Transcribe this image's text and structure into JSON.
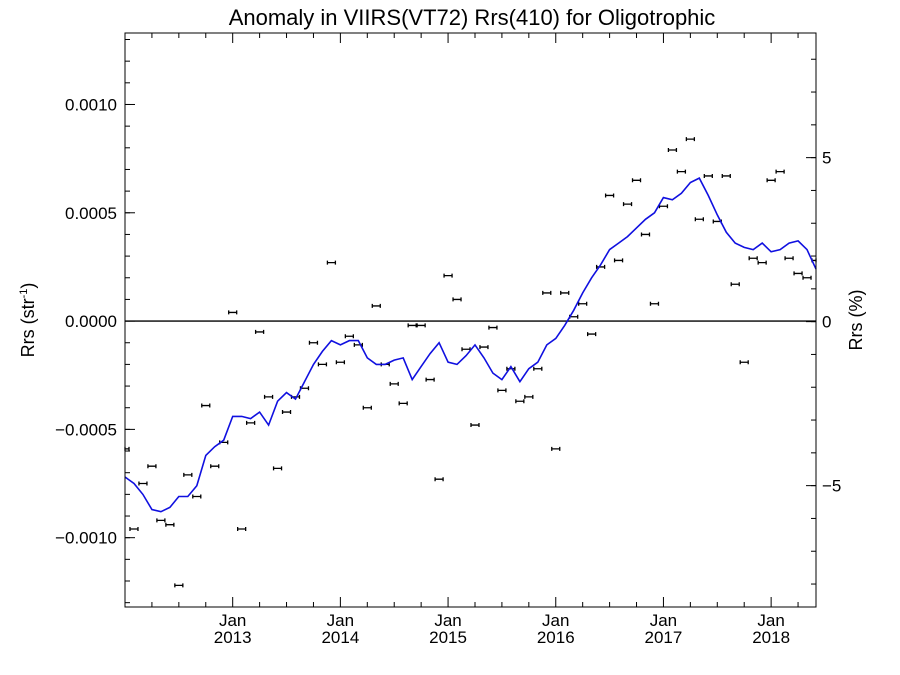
{
  "chart_data": {
    "type": "line",
    "title": "Anomaly in VIIRS(VT72) Rrs(410) for Oligotrophic",
    "ylabel_left": "Rrs (str",
    "ylabel_left_sup": "-1",
    "ylabel_left_close": ")",
    "ylabel_right": "Rrs (%)",
    "xlim": [
      "2012-01",
      "2018-06"
    ],
    "ylim": [
      -0.00132,
      0.00133
    ],
    "ylim_right": [
      -8.7,
      8.8
    ],
    "grid": false,
    "legend": "none",
    "colors": {
      "line": "#1010e0",
      "points": "#000000",
      "zero_line": "#000000"
    },
    "y_ticks_left": [
      {
        "value": 0.001,
        "label": "0.0010"
      },
      {
        "value": 0.0005,
        "label": "0.0005"
      },
      {
        "value": 0,
        "label": "0.0000"
      },
      {
        "value": -0.0005,
        "label": "−0.0005"
      },
      {
        "value": -0.001,
        "label": "−0.0010"
      }
    ],
    "y_ticks_right": [
      {
        "value": 5,
        "label": "5"
      },
      {
        "value": 0,
        "label": "0"
      },
      {
        "value": -5,
        "label": "−5"
      }
    ],
    "x_ticks": [
      {
        "date": "2013-01",
        "month": "Jan",
        "year": "2013"
      },
      {
        "date": "2014-01",
        "month": "Jan",
        "year": "2014"
      },
      {
        "date": "2015-01",
        "month": "Jan",
        "year": "2015"
      },
      {
        "date": "2016-01",
        "month": "Jan",
        "year": "2016"
      },
      {
        "date": "2017-01",
        "month": "Jan",
        "year": "2017"
      },
      {
        "date": "2018-01",
        "month": "Jan",
        "year": "2018"
      }
    ],
    "series": [
      {
        "kind": "points",
        "x": [
          "2012-01",
          "2012-02",
          "2012-03",
          "2012-04",
          "2012-05",
          "2012-06",
          "2012-07",
          "2012-08",
          "2012-09",
          "2012-10",
          "2012-11",
          "2012-12",
          "2013-01",
          "2013-02",
          "2013-03",
          "2013-04",
          "2013-05",
          "2013-06",
          "2013-07",
          "2013-08",
          "2013-09",
          "2013-10",
          "2013-11",
          "2013-12",
          "2014-01",
          "2014-02",
          "2014-03",
          "2014-04",
          "2014-05",
          "2014-06",
          "2014-07",
          "2014-08",
          "2014-09",
          "2014-10",
          "2014-11",
          "2014-12",
          "2015-01",
          "2015-02",
          "2015-03",
          "2015-04",
          "2015-05",
          "2015-06",
          "2015-07",
          "2015-08",
          "2015-09",
          "2015-10",
          "2015-11",
          "2015-12",
          "2016-01",
          "2016-02",
          "2016-03",
          "2016-04",
          "2016-05",
          "2016-06",
          "2016-07",
          "2016-08",
          "2016-09",
          "2016-10",
          "2016-11",
          "2016-12",
          "2017-01",
          "2017-02",
          "2017-03",
          "2017-04",
          "2017-05",
          "2017-06",
          "2017-07",
          "2017-08",
          "2017-09",
          "2017-10",
          "2017-11",
          "2017-12",
          "2018-01",
          "2018-02",
          "2018-03",
          "2018-04",
          "2018-05",
          "2018-06"
        ],
        "y": [
          -0.00059,
          -0.00096,
          -0.00075,
          -0.00067,
          -0.00092,
          -0.00094,
          -0.00122,
          -0.00071,
          -0.00081,
          -0.00039,
          -0.00067,
          -0.00056,
          4e-05,
          -0.00096,
          -0.00047,
          -5e-05,
          -0.00035,
          -0.00068,
          -0.00042,
          -0.00035,
          -0.00031,
          -0.0001,
          -0.0002,
          0.00027,
          -0.00019,
          -7e-05,
          -0.00011,
          -0.0004,
          7e-05,
          -0.0002,
          -0.00029,
          -0.00038,
          -2e-05,
          -2e-05,
          -0.00027,
          -0.00073,
          0.00021,
          0.0001,
          -0.00013,
          -0.00048,
          -0.00012,
          -3e-05,
          -0.00032,
          -0.00022,
          -0.00037,
          -0.00035,
          -0.00022,
          0.00013,
          -0.00059,
          0.00013,
          2e-05,
          8e-05,
          -6e-05,
          0.00025,
          0.00058,
          0.00028,
          0.00054,
          0.00065,
          0.0004,
          8e-05,
          0.00053,
          0.00079,
          0.00069,
          0.00084,
          0.00047,
          0.00067,
          0.00046,
          0.00067,
          0.00017,
          -0.00019,
          0.00029,
          0.00027,
          0.00065,
          0.00069,
          0.00029,
          0.00022,
          0.0002,
          0.00028
        ]
      },
      {
        "kind": "line",
        "x": [
          "2012-01",
          "2012-02",
          "2012-03",
          "2012-04",
          "2012-05",
          "2012-06",
          "2012-07",
          "2012-08",
          "2012-09",
          "2012-10",
          "2012-11",
          "2012-12",
          "2013-01",
          "2013-02",
          "2013-03",
          "2013-04",
          "2013-05",
          "2013-06",
          "2013-07",
          "2013-08",
          "2013-09",
          "2013-10",
          "2013-11",
          "2013-12",
          "2014-01",
          "2014-02",
          "2014-03",
          "2014-04",
          "2014-05",
          "2014-06",
          "2014-07",
          "2014-08",
          "2014-09",
          "2014-10",
          "2014-11",
          "2014-12",
          "2015-01",
          "2015-02",
          "2015-03",
          "2015-04",
          "2015-05",
          "2015-06",
          "2015-07",
          "2015-08",
          "2015-09",
          "2015-10",
          "2015-11",
          "2015-12",
          "2016-01",
          "2016-02",
          "2016-03",
          "2016-04",
          "2016-05",
          "2016-06",
          "2016-07",
          "2016-08",
          "2016-09",
          "2016-10",
          "2016-11",
          "2016-12",
          "2017-01",
          "2017-02",
          "2017-03",
          "2017-04",
          "2017-05",
          "2017-06",
          "2017-07",
          "2017-08",
          "2017-09",
          "2017-10",
          "2017-11",
          "2017-12",
          "2018-01",
          "2018-02",
          "2018-03",
          "2018-04",
          "2018-05",
          "2018-06"
        ],
        "y": [
          -0.00072,
          -0.00075,
          -0.0008,
          -0.00087,
          -0.00088,
          -0.00086,
          -0.00081,
          -0.00081,
          -0.00076,
          -0.00062,
          -0.00058,
          -0.00055,
          -0.00044,
          -0.00044,
          -0.00045,
          -0.00042,
          -0.00048,
          -0.00037,
          -0.00033,
          -0.00036,
          -0.00028,
          -0.0002,
          -0.00014,
          -9e-05,
          -0.00011,
          -9e-05,
          -9e-05,
          -0.00017,
          -0.0002,
          -0.0002,
          -0.00018,
          -0.00017,
          -0.00027,
          -0.00021,
          -0.00015,
          -0.0001,
          -0.00019,
          -0.0002,
          -0.00016,
          -0.00011,
          -0.00017,
          -0.00024,
          -0.00027,
          -0.00021,
          -0.00028,
          -0.00022,
          -0.00019,
          -0.00011,
          -8e-05,
          -2e-05,
          5e-05,
          0.00013,
          0.0002,
          0.00026,
          0.00033,
          0.00036,
          0.00039,
          0.00043,
          0.00047,
          0.0005,
          0.00057,
          0.00056,
          0.00059,
          0.00064,
          0.00066,
          0.00058,
          0.00049,
          0.00041,
          0.00036,
          0.00034,
          0.00033,
          0.00036,
          0.00032,
          0.00033,
          0.00036,
          0.00037,
          0.00033,
          0.00024
        ]
      }
    ]
  }
}
